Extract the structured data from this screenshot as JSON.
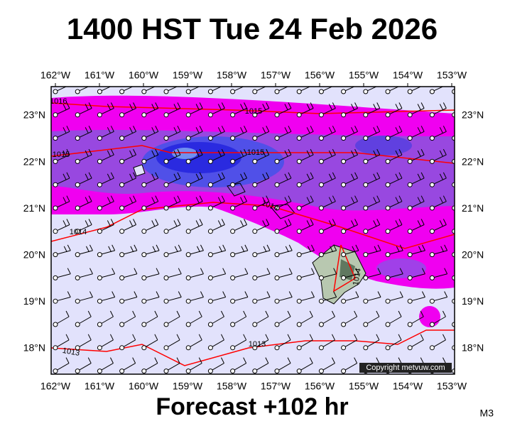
{
  "title": "1400 HST Tue 24 Feb 2026",
  "footer": "Forecast +102 hr",
  "model": "M3",
  "copyright": "Copyright metvuw.com",
  "longitudes": [
    "162°W",
    "161°W",
    "160°W",
    "159°W",
    "158°W",
    "157°W",
    "156°W",
    "155°W",
    "154°W",
    "153°W"
  ],
  "latitudes": [
    "23°N",
    "22°N",
    "21°N",
    "20°N",
    "19°N",
    "18°N"
  ],
  "isobar_labels": [
    "1016",
    "1015",
    "1015",
    "1015",
    "1014",
    "1014",
    "1014",
    "1013",
    "1013"
  ]
}
